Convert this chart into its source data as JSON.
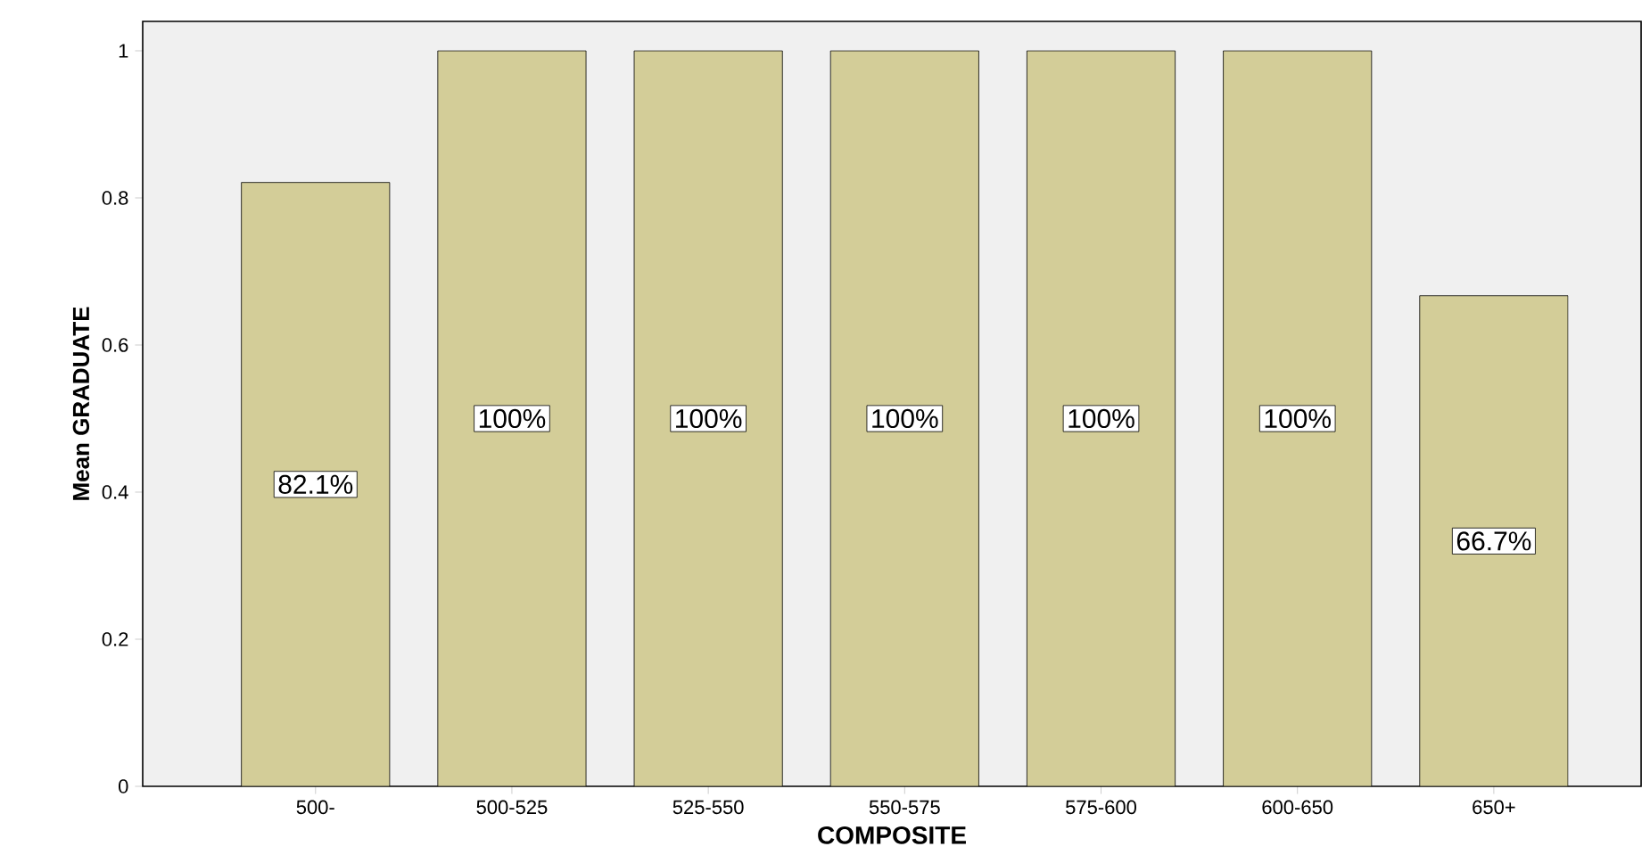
{
  "chart_data": {
    "type": "bar",
    "xlabel": "COMPOSITE",
    "ylabel": "Mean GRADUATE",
    "categories": [
      "500-",
      "500-525",
      "525-550",
      "550-575",
      "575-600",
      "600-650",
      "650+"
    ],
    "values": [
      0.821,
      1,
      1,
      1,
      1,
      1,
      0.667
    ],
    "value_labels": [
      "82.1%",
      "100%",
      "100%",
      "100%",
      "100%",
      "100%",
      "66.7%"
    ],
    "color": "#d3cd98",
    "ylim": [
      0,
      1.04
    ],
    "yticks": [
      0,
      0.2,
      0.4,
      0.6,
      0.8,
      1
    ]
  }
}
